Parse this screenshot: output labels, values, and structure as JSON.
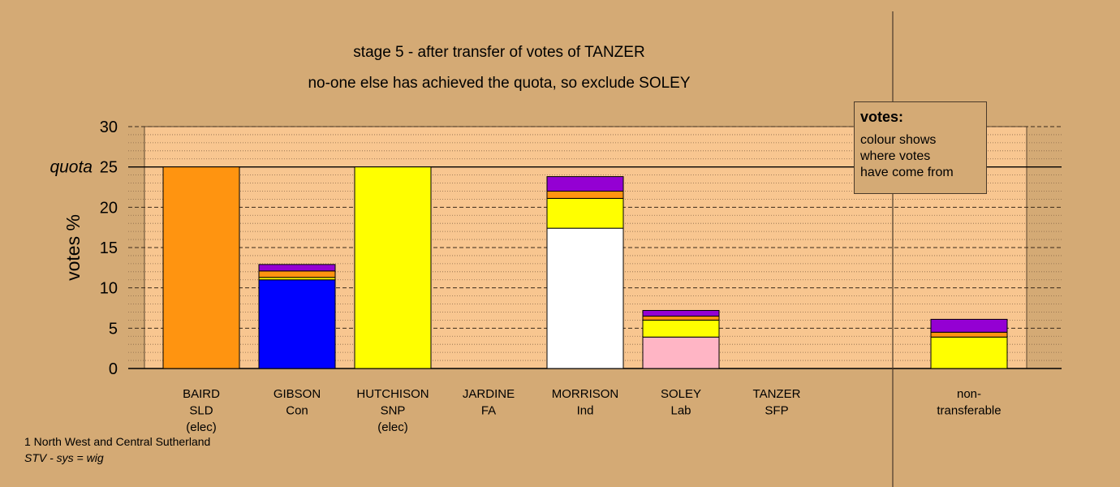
{
  "titles": {
    "line1": "stage 5 - after transfer of votes of TANZER",
    "line2": "no-one else has achieved the quota, so exclude SOLEY"
  },
  "legend": {
    "heading": "votes:",
    "lines": [
      "colour shows",
      "where votes",
      "have come from"
    ]
  },
  "footer": {
    "line1": "1 North West and Central Sutherland",
    "line2": "STV - sys = wig"
  },
  "colors": {
    "background": "#d4aa75",
    "plot_area": "#f8c690",
    "SLD": "#ff9410",
    "Con": "#0000ff",
    "SNP": "#ffff00",
    "Ind": "#ffffff",
    "Lab": "#ffb5c5",
    "SFP": "#9400d3"
  },
  "chart_data": {
    "type": "bar",
    "stacked": true,
    "ylabel": "votes %",
    "ylim": [
      0,
      30
    ],
    "yticks": [
      0,
      5,
      10,
      15,
      20,
      25,
      30
    ],
    "quota": 25,
    "quota_label": "quota",
    "grid": true,
    "categories": [
      {
        "lines": [
          "BAIRD",
          "SLD",
          "(elec)"
        ]
      },
      {
        "lines": [
          "GIBSON",
          "Con"
        ]
      },
      {
        "lines": [
          "HUTCHISON",
          "SNP",
          "(elec)"
        ]
      },
      {
        "lines": [
          "JARDINE",
          "FA"
        ]
      },
      {
        "lines": [
          "MORRISON",
          "Ind"
        ]
      },
      {
        "lines": [
          "SOLEY",
          "Lab"
        ]
      },
      {
        "lines": [
          "TANZER",
          "SFP"
        ]
      },
      {
        "lines": [
          "non-",
          "transferable"
        ]
      }
    ],
    "series": [
      {
        "color": "#ff9410",
        "values": [
          25.0,
          0,
          0,
          0,
          0,
          0,
          0,
          0
        ]
      },
      {
        "color": "#0000ff",
        "values": [
          0,
          11.0,
          0,
          0,
          0,
          0,
          0,
          0
        ]
      },
      {
        "color": "#ffffff",
        "values": [
          0,
          0,
          0,
          0,
          17.4,
          0,
          0,
          0
        ]
      },
      {
        "color": "#ffb5c5",
        "values": [
          0,
          0,
          0,
          0,
          0,
          3.9,
          0,
          0
        ]
      },
      {
        "color": "#ffff00",
        "values": [
          0,
          0.3,
          25.0,
          0,
          3.7,
          2.1,
          0,
          3.9
        ]
      },
      {
        "color": "#ff9410",
        "values": [
          0,
          0.8,
          0,
          0,
          0.9,
          0.5,
          0,
          0.6
        ]
      },
      {
        "color": "#9400d3",
        "values": [
          0,
          0.8,
          0,
          0,
          1.8,
          0.7,
          0,
          1.6
        ]
      }
    ]
  }
}
